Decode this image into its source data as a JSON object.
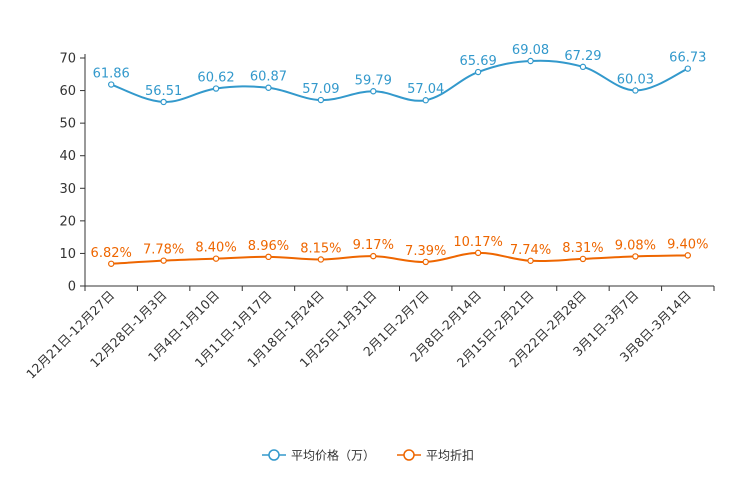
{
  "chart_data": {
    "type": "line",
    "categories": [
      "12月21日-12月27日",
      "12月28日-1月3日",
      "1月4日-1月10日",
      "1月11日-1月17日",
      "1月18日-1月24日",
      "1月25日-1月31日",
      "2月1日-2月7日",
      "2月8日-2月14日",
      "2月15日-2月21日",
      "2月22日-2月28日",
      "3月1日-3月7日",
      "3月8日-3月14日"
    ],
    "series": [
      {
        "name": "平均价格（万）",
        "color": "#3399cc",
        "values": [
          61.86,
          56.51,
          60.62,
          60.87,
          57.09,
          59.79,
          57.04,
          65.69,
          69.08,
          67.29,
          60.03,
          66.73
        ],
        "labels": [
          "61.86",
          "56.51",
          "60.62",
          "60.87",
          "57.09",
          "59.79",
          "57.04",
          "65.69",
          "69.08",
          "67.29",
          "60.03",
          "66.73"
        ]
      },
      {
        "name": "平均折扣",
        "color": "#ee6600",
        "values": [
          6.82,
          7.78,
          8.4,
          8.96,
          8.15,
          9.17,
          7.39,
          10.17,
          7.74,
          8.31,
          9.08,
          9.4
        ],
        "labels": [
          "6.82%",
          "7.78%",
          "8.40%",
          "8.96%",
          "8.15%",
          "9.17%",
          "7.39%",
          "10.17%",
          "7.74%",
          "8.31%",
          "9.08%",
          "9.40%"
        ]
      }
    ],
    "yticks": [
      "0",
      "10",
      "20",
      "30",
      "40",
      "50",
      "60",
      "70"
    ],
    "ylim": [
      0,
      70
    ],
    "legend_position": "bottom-center"
  }
}
